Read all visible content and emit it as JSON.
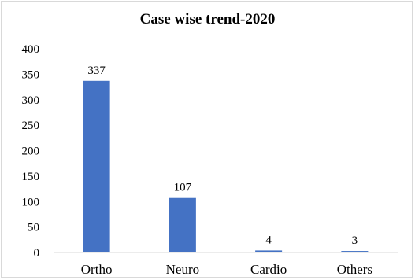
{
  "chart_data": {
    "type": "bar",
    "title": "Case wise trend-2020",
    "categories": [
      "Ortho",
      "Neuro",
      "Cardio",
      "Others"
    ],
    "values": [
      337,
      107,
      4,
      3
    ],
    "data_labels": [
      "337",
      "107",
      "4",
      "3"
    ],
    "ylim": [
      0,
      400
    ],
    "yticks": [
      0,
      50,
      100,
      150,
      200,
      250,
      300,
      350,
      400
    ],
    "xlabel": "",
    "ylabel": "",
    "grid": false,
    "legend": "none",
    "bar_color": "#4472c4"
  }
}
